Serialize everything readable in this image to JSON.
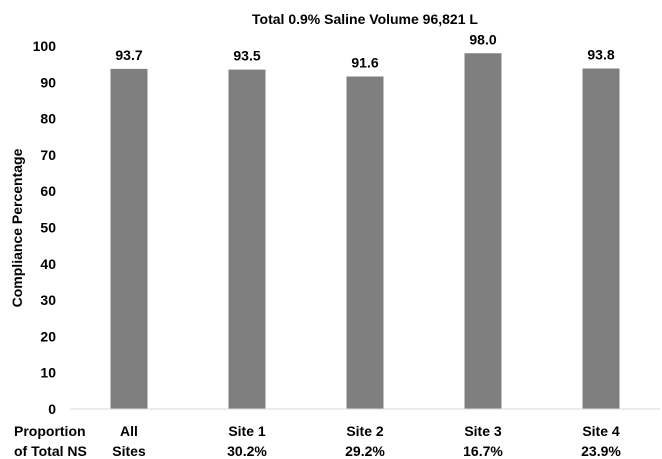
{
  "chart_data": {
    "type": "bar",
    "title": "Total 0.9% Saline Volume 96,821 L",
    "xlabel": "",
    "ylabel": "Compliance Percentage",
    "ylim": [
      0,
      100
    ],
    "yticks": [
      0,
      10,
      20,
      30,
      40,
      50,
      60,
      70,
      80,
      90,
      100
    ],
    "grid": false,
    "legend": "none",
    "bar_color": "#7f7f7f",
    "categories": [
      "All Sites",
      "Site 1",
      "Site 2",
      "Site 3",
      "Site 4"
    ],
    "category_lines": [
      [
        "All",
        "Sites"
      ],
      [
        "Site 1",
        "30.2%"
      ],
      [
        "Site 2",
        "29.2%"
      ],
      [
        "Site 3",
        "16.7%"
      ],
      [
        "Site 4",
        "23.9%"
      ]
    ],
    "proportion_of_total_ns": [
      "",
      "30.2%",
      "29.2%",
      "16.7%",
      "23.9%"
    ],
    "row_label_lines": [
      "Proportion",
      "of Total NS"
    ],
    "values": [
      93.7,
      93.5,
      91.6,
      98.0,
      93.8
    ],
    "value_labels": [
      "93.7",
      "93.5",
      "91.6",
      "98.0",
      "93.8"
    ]
  }
}
